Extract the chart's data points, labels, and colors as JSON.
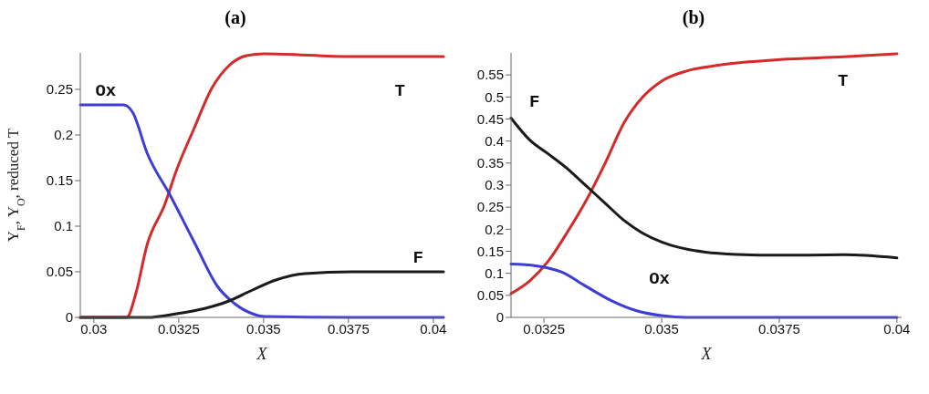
{
  "chart_data": [
    {
      "type": "line",
      "title": "(a)",
      "xlabel": "X",
      "ylabel": "Y$_{F}$, Y$_{O}$, reduced T",
      "xlim": [
        0.0296,
        0.0403
      ],
      "xticks": [
        0.03,
        0.0325,
        0.035,
        0.0375,
        0.04
      ],
      "ylim": [
        0,
        0.29
      ],
      "yticks": [
        0,
        0.05,
        0.1,
        0.15,
        0.2,
        0.25
      ],
      "grid": false,
      "legend": false,
      "series": [
        {
          "name": "T",
          "color": "#d42a2a",
          "x": [
            0.0296,
            0.0305,
            0.03097,
            0.03122,
            0.03157,
            0.03209,
            0.03243,
            0.03295,
            0.03347,
            0.03398,
            0.0345,
            0.03502,
            0.0376,
            0.0403
          ],
          "values": [
            0,
            0,
            0,
            0.024,
            0.08,
            0.124,
            0.161,
            0.207,
            0.251,
            0.276,
            0.287,
            0.289,
            0.286,
            0.286
          ]
        },
        {
          "name": "Ox",
          "color": "#3d3dd6",
          "x": [
            0.0296,
            0.0305,
            0.03088,
            0.03114,
            0.03157,
            0.03226,
            0.03295,
            0.03364,
            0.03415,
            0.03467,
            0.03502,
            0.0376,
            0.0403
          ],
          "values": [
            0.233,
            0.233,
            0.233,
            0.225,
            0.18,
            0.133,
            0.083,
            0.034,
            0.015,
            0.004,
            0.001,
            0,
            0
          ]
        },
        {
          "name": "F",
          "color": "#1a1a1a",
          "x": [
            0.0296,
            0.03157,
            0.03243,
            0.03329,
            0.03398,
            0.03467,
            0.03536,
            0.03622,
            0.0376,
            0.0403
          ],
          "values": [
            0,
            0,
            0.004,
            0.01,
            0.018,
            0.03,
            0.041,
            0.048,
            0.05,
            0.05
          ]
        }
      ]
    },
    {
      "type": "line",
      "title": "(b)",
      "xlabel": "X",
      "xlim": [
        0.0318,
        0.0401
      ],
      "xticks": [
        0.0325,
        0.035,
        0.0375,
        0.04
      ],
      "ylim": [
        0,
        0.6
      ],
      "yticks": [
        0,
        0.05,
        0.1,
        0.15,
        0.2,
        0.25,
        0.3,
        0.35,
        0.4,
        0.45,
        0.5,
        0.55
      ],
      "grid": false,
      "legend": false,
      "series": [
        {
          "name": "T",
          "color": "#d42a2a",
          "x": [
            0.0318,
            0.0322,
            0.0326,
            0.033,
            0.0334,
            0.0338,
            0.0342,
            0.0346,
            0.035,
            0.03553,
            0.0362,
            0.03753,
            0.03887,
            0.04
          ],
          "values": [
            0.054,
            0.083,
            0.129,
            0.194,
            0.266,
            0.35,
            0.441,
            0.5,
            0.536,
            0.559,
            0.572,
            0.585,
            0.591,
            0.598
          ]
        },
        {
          "name": "F",
          "color": "#1a1a1a",
          "x": [
            0.0318,
            0.0322,
            0.0326,
            0.033,
            0.0334,
            0.0338,
            0.0342,
            0.0346,
            0.035,
            0.0354,
            0.03593,
            0.0366,
            0.03753,
            0.03887,
            0.04
          ],
          "values": [
            0.452,
            0.402,
            0.37,
            0.337,
            0.298,
            0.259,
            0.22,
            0.191,
            0.171,
            0.158,
            0.148,
            0.143,
            0.141,
            0.142,
            0.135
          ]
        },
        {
          "name": "Ox",
          "color": "#3d3dd6",
          "x": [
            0.0318,
            0.03233,
            0.03287,
            0.0334,
            0.03393,
            0.03447,
            0.035,
            0.03553,
            0.04
          ],
          "values": [
            0.121,
            0.117,
            0.103,
            0.07,
            0.038,
            0.015,
            0.004,
            0,
            0
          ]
        }
      ]
    }
  ]
}
